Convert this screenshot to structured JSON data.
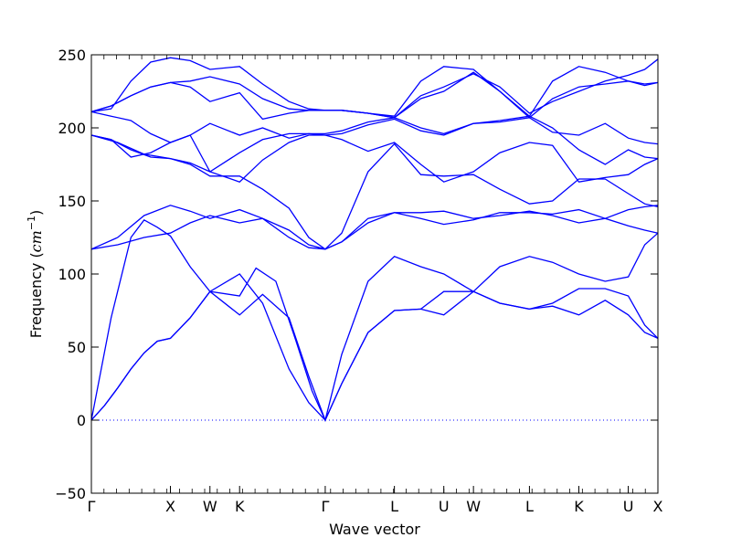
{
  "chart_data": {
    "type": "line",
    "xlabel": "Wave vector",
    "ylabel": "Frequency",
    "ylabel_unit": "cm",
    "ylabel_unit_exp": "−1",
    "ylim": [
      -50,
      250
    ],
    "xlim": [
      0,
      8.6
    ],
    "yticks": [
      -50,
      0,
      50,
      100,
      150,
      200,
      250
    ],
    "yticklabels": [
      "−50",
      "0",
      "50",
      "100",
      "150",
      "200",
      "250"
    ],
    "xticks": [
      {
        "label": "Γ",
        "x": 0
      },
      {
        "label": "X",
        "x": 1.2
      },
      {
        "label": "W",
        "x": 1.8
      },
      {
        "label": "K",
        "x": 2.25
      },
      {
        "label": "Γ",
        "x": 3.55
      },
      {
        "label": "L",
        "x": 4.6
      },
      {
        "label": "U",
        "x": 5.35
      },
      {
        "label": "W",
        "x": 5.8
      },
      {
        "label": "L",
        "x": 6.65
      },
      {
        "label": "K",
        "x": 7.4
      },
      {
        "label": "U",
        "x": 8.15
      },
      {
        "label": "X",
        "x": 8.6
      }
    ],
    "zero_line": 0,
    "color": "#0000ff",
    "series": [
      {
        "x": [
          0,
          0.2,
          0.4,
          0.6,
          0.8,
          1.0,
          1.2,
          1.5,
          1.8,
          2.25,
          2.6,
          3.0,
          3.3,
          3.55,
          3.8,
          4.2,
          4.6,
          5.0,
          5.35,
          5.8,
          6.2,
          6.65,
          7.0,
          7.4,
          7.8,
          8.15,
          8.4,
          8.6
        ],
        "y": [
          0,
          10,
          22,
          35,
          46,
          54,
          56,
          70,
          88,
          100,
          80,
          35,
          12,
          0,
          25,
          60,
          75,
          76,
          72,
          88,
          80,
          76,
          78,
          72,
          82,
          72,
          60,
          56
        ]
      },
      {
        "x": [
          0,
          0.2,
          0.4,
          0.6,
          0.8,
          1.0,
          1.2,
          1.5,
          1.8,
          2.25,
          2.6,
          3.0,
          3.3,
          3.55,
          3.8,
          4.2,
          4.6,
          5.0,
          5.35,
          5.8,
          6.2,
          6.65,
          7.0,
          7.4,
          7.8,
          8.15,
          8.4,
          8.6
        ],
        "y": [
          0,
          10,
          22,
          35,
          46,
          54,
          56,
          70,
          88,
          72,
          86,
          70,
          30,
          0,
          25,
          60,
          75,
          76,
          88,
          88,
          80,
          76,
          80,
          90,
          90,
          85,
          65,
          56
        ]
      },
      {
        "x": [
          0,
          0.3,
          0.6,
          0.8,
          1.0,
          1.2,
          1.5,
          1.8,
          2.25,
          2.5,
          2.8,
          3.1,
          3.35,
          3.55,
          3.8,
          4.2,
          4.6,
          5.0,
          5.35,
          5.8,
          6.2,
          6.65,
          7.0,
          7.4,
          7.8,
          8.15,
          8.4,
          8.6
        ],
        "y": [
          0,
          70,
          125,
          137,
          132,
          126,
          105,
          88,
          85,
          104,
          95,
          55,
          20,
          0,
          45,
          95,
          112,
          105,
          100,
          88,
          105,
          112,
          108,
          100,
          95,
          98,
          120,
          128
        ]
      },
      {
        "x": [
          0,
          0.4,
          0.8,
          1.2,
          1.5,
          1.8,
          2.25,
          2.6,
          3.0,
          3.3,
          3.55,
          3.8,
          4.2,
          4.6,
          5.0,
          5.35,
          5.8,
          6.2,
          6.65,
          7.0,
          7.4,
          7.8,
          8.15,
          8.4,
          8.6
        ],
        "y": [
          117,
          120,
          125,
          128,
          135,
          140,
          135,
          138,
          130,
          120,
          117,
          122,
          138,
          142,
          142,
          143,
          138,
          140,
          143,
          140,
          135,
          138,
          133,
          130,
          128
        ]
      },
      {
        "x": [
          0,
          0.4,
          0.8,
          1.2,
          1.5,
          1.8,
          2.25,
          2.6,
          3.0,
          3.3,
          3.55,
          3.8,
          4.2,
          4.6,
          5.0,
          5.35,
          5.8,
          6.2,
          6.65,
          7.0,
          7.4,
          7.8,
          8.15,
          8.4,
          8.6
        ],
        "y": [
          117,
          125,
          140,
          147,
          143,
          138,
          144,
          138,
          125,
          118,
          117,
          122,
          135,
          142,
          138,
          134,
          137,
          142,
          142,
          141,
          144,
          138,
          144,
          146,
          147
        ]
      },
      {
        "x": [
          0,
          0.4,
          0.8,
          1.2,
          1.5,
          1.8,
          2.25,
          2.6,
          3.0,
          3.3,
          3.55,
          3.8,
          4.2,
          4.6,
          5.0,
          5.35,
          5.8,
          6.2,
          6.65,
          7.0,
          7.4,
          7.8,
          8.15,
          8.4,
          8.6
        ],
        "y": [
          195,
          190,
          182,
          179,
          175,
          167,
          167,
          158,
          145,
          125,
          117,
          128,
          170,
          189,
          168,
          167,
          168,
          158,
          148,
          150,
          165,
          165,
          155,
          148,
          146
        ]
      },
      {
        "x": [
          0,
          0.3,
          0.6,
          0.9,
          1.2,
          1.5,
          1.8,
          2.25,
          2.6,
          3.0,
          3.3,
          3.55,
          3.8,
          4.2,
          4.6,
          5.0,
          5.35,
          5.8,
          6.2,
          6.65,
          7.0,
          7.4,
          7.8,
          8.15,
          8.4,
          8.6
        ],
        "y": [
          195,
          192,
          180,
          183,
          190,
          195,
          170,
          163,
          178,
          190,
          195,
          195,
          192,
          184,
          190,
          175,
          163,
          170,
          183,
          190,
          188,
          163,
          166,
          168,
          175,
          179
        ]
      },
      {
        "x": [
          0,
          0.3,
          0.6,
          0.9,
          1.2,
          1.5,
          1.8,
          2.25,
          2.6,
          3.0,
          3.3,
          3.55,
          3.8,
          4.2,
          4.6,
          5.0,
          5.35,
          5.8,
          6.2,
          6.65,
          7.0,
          7.4,
          7.8,
          8.15,
          8.4,
          8.6
        ],
        "y": [
          195,
          192,
          185,
          180,
          179,
          176,
          170,
          183,
          192,
          196,
          196,
          195,
          196,
          202,
          206,
          198,
          195,
          203,
          205,
          208,
          200,
          185,
          175,
          185,
          180,
          179
        ]
      },
      {
        "x": [
          0,
          0.3,
          0.6,
          0.9,
          1.2,
          1.5,
          1.8,
          2.25,
          2.6,
          3.0,
          3.3,
          3.55,
          3.8,
          4.2,
          4.6,
          5.0,
          5.35,
          5.8,
          6.2,
          6.65,
          7.0,
          7.4,
          7.8,
          8.15,
          8.4,
          8.6
        ],
        "y": [
          211,
          208,
          205,
          196,
          190,
          195,
          203,
          195,
          200,
          193,
          196,
          196,
          198,
          204,
          207,
          200,
          196,
          203,
          204,
          207,
          197,
          195,
          203,
          193,
          190,
          189
        ]
      },
      {
        "x": [
          0,
          0.3,
          0.6,
          0.9,
          1.2,
          1.5,
          1.8,
          2.25,
          2.6,
          3.0,
          3.3,
          3.55,
          3.8,
          4.2,
          4.6,
          5.0,
          5.35,
          5.8,
          6.2,
          6.65,
          7.0,
          7.4,
          7.8,
          8.15,
          8.4,
          8.6
        ],
        "y": [
          211,
          215,
          222,
          228,
          231,
          228,
          218,
          224,
          206,
          210,
          212,
          212,
          212,
          210,
          207,
          220,
          225,
          238,
          225,
          207,
          220,
          228,
          230,
          232,
          230,
          231
        ]
      },
      {
        "x": [
          0,
          0.3,
          0.6,
          0.9,
          1.2,
          1.5,
          1.8,
          2.25,
          2.6,
          3.0,
          3.3,
          3.55,
          3.8,
          4.2,
          4.6,
          5.0,
          5.35,
          5.8,
          6.2,
          6.65,
          7.0,
          7.4,
          7.8,
          8.15,
          8.4,
          8.6
        ],
        "y": [
          211,
          215,
          222,
          228,
          231,
          232,
          235,
          230,
          220,
          213,
          212,
          212,
          212,
          210,
          207,
          222,
          228,
          237,
          228,
          210,
          218,
          225,
          232,
          236,
          240,
          247
        ]
      },
      {
        "x": [
          0,
          0.3,
          0.6,
          0.9,
          1.2,
          1.5,
          1.8,
          2.25,
          2.6,
          3.0,
          3.3,
          3.55,
          3.8,
          4.2,
          4.6,
          5.0,
          5.35,
          5.8,
          6.2,
          6.65,
          7.0,
          7.4,
          7.8,
          8.15,
          8.4,
          8.6
        ],
        "y": [
          211,
          213,
          232,
          245,
          248,
          246,
          240,
          242,
          230,
          218,
          213,
          212,
          212,
          210,
          208,
          232,
          242,
          240,
          225,
          208,
          232,
          242,
          238,
          232,
          229,
          231
        ]
      }
    ]
  }
}
